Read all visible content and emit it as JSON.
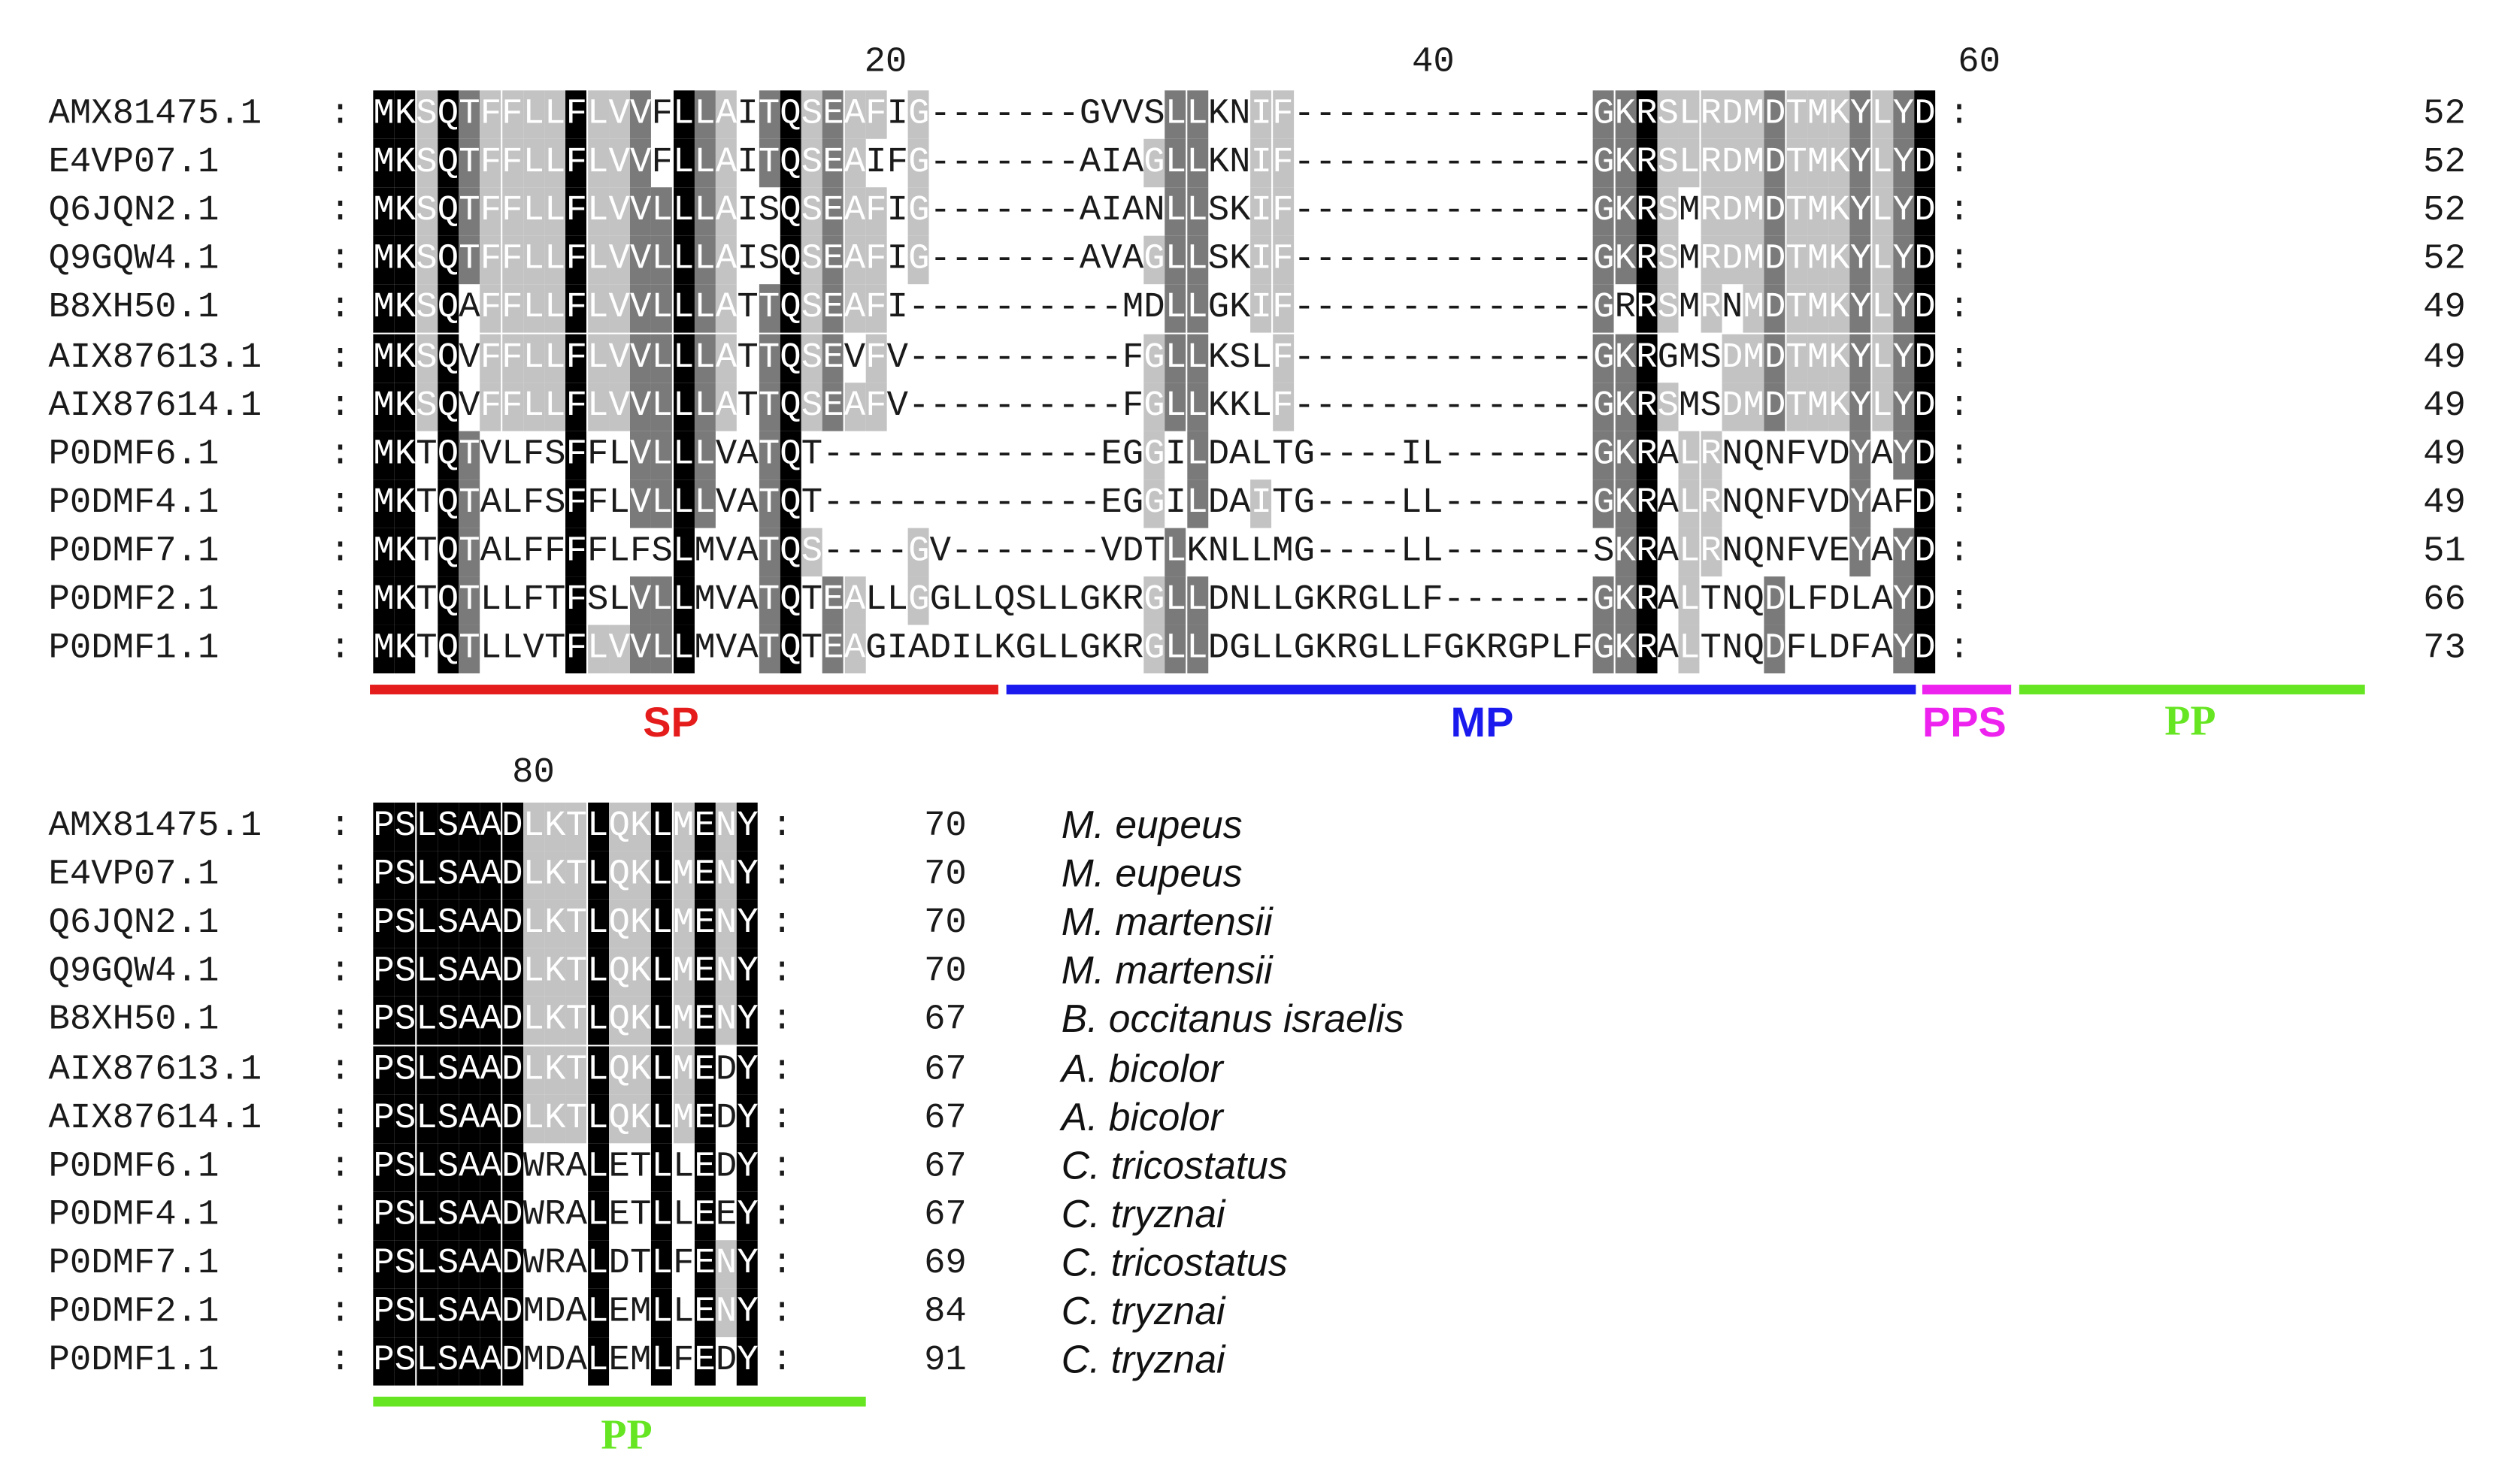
{
  "colors": {
    "black_shade": "#000000",
    "dark_shade": "#7a7a7a",
    "light_shade": "#c3c3c3",
    "text_on_black": "#ffffff",
    "sp": "#e51c1c",
    "mp": "#1a1aee",
    "pps": "#ee22ee",
    "pp": "#66e622"
  },
  "tick_labels": {
    "t20": "20",
    "t40": "40",
    "t60": "60",
    "t80": "80"
  },
  "block1": {
    "rows": [
      {
        "id": "AMX81475.1",
        "seq": "MKSQTFFLLFLVVFLLAITQSEAFIG-------GVVSLLKNIF--------------GKRSLRDMDTMKYLYD",
        "count": "52"
      },
      {
        "id": "E4VP07.1",
        "seq": "MKSQTFFLLFLVVFLLAITQSEAIFG-------AIAGLLKNIF--------------GKRSLRDMDTMKYLYD",
        "count": "52"
      },
      {
        "id": "Q6JQN2.1",
        "seq": "MKSQTFFLLFLVVLLLAISQSEAFIG-------AIANLLSKIF--------------GKRSMRDMDTMKYLYD",
        "count": "52"
      },
      {
        "id": "Q9GQW4.1",
        "seq": "MKSQTFFLLFLVVLLLAISQSEAFIG-------AVAGLLSKIF--------------GKRSMRDMDTMKYLYD",
        "count": "52"
      },
      {
        "id": "B8XH50.1",
        "seq": "MKSQAFFLLFLVVLLLATTQSEAFI----------MDLLGKIF--------------GRRSMRNMDTMKYLYD",
        "count": "49"
      },
      {
        "id": "AIX87613.1",
        "seq": "MKSQVFFLLFLVVLLLATTQSEVFV----------FGLLKSLF--------------GKRGMSDMDTMKYLYD",
        "count": "49"
      },
      {
        "id": "AIX87614.1",
        "seq": "MKSQVFFLLFLVVLLLATTQSEAFV----------FGLLKKLF--------------GKRSMSDMDTMKYLYD",
        "count": "49"
      },
      {
        "id": "P0DMF6.1",
        "seq": "MKTQTVLFSFFLVLLLVATQT-------------EGGILDALTG----IL-------GKRALRNQNFVDYAYD",
        "count": "49"
      },
      {
        "id": "P0DMF4.1",
        "seq": "MKTQTALFSFFLVLLLVATQT-------------EGGILDAITG----LL-------GKRALRNQNFVDYAFD",
        "count": "49"
      },
      {
        "id": "P0DMF7.1",
        "seq": "MKTQTALFFFFLFSLMVATQS----GV-------VDTLKNLLMG----LL-------SKRALRNQNFVEYAYD",
        "count": "51"
      },
      {
        "id": "P0DMF2.1",
        "seq": "MKTQTLLFTFSLVLLMVATQTEALLGGLLQSLLGKRGLLDNLLGKRGLLF-------GKRALTNQDLFDLAYD",
        "count": "66"
      },
      {
        "id": "P0DMF1.1",
        "seq": "MKTQTLLVTFLVVLLMVATQTEAGIADILKGLLGKRGLLDGLLGKRGLLFGKRGPLFGKRALTNQDFLDFAYD",
        "count": "73"
      }
    ]
  },
  "block2": {
    "rows": [
      {
        "id": "AMX81475.1",
        "seq": "PSLSAADLKTLQKLMENY",
        "count": "70",
        "species": "M. eupeus"
      },
      {
        "id": "E4VP07.1",
        "seq": "PSLSAADLKTLQKLMENY",
        "count": "70",
        "species": "M. eupeus"
      },
      {
        "id": "Q6JQN2.1",
        "seq": "PSLSAADLKTLQKLMENY",
        "count": "70",
        "species": "M. martensii"
      },
      {
        "id": "Q9GQW4.1",
        "seq": "PSLSAADLKTLQKLMENY",
        "count": "70",
        "species": "M. martensii"
      },
      {
        "id": "B8XH50.1",
        "seq": "PSLSAADLKTLQKLMENY",
        "count": "67",
        "species": "B. occitanus israelis"
      },
      {
        "id": "AIX87613.1",
        "seq": "PSLSAADLKTLQKLMEDY",
        "count": "67",
        "species": "A. bicolor"
      },
      {
        "id": "AIX87614.1",
        "seq": "PSLSAADLKTLQKLMEDY",
        "count": "67",
        "species": "A. bicolor"
      },
      {
        "id": "P0DMF6.1",
        "seq": "PSLSAADWRALETLLEDY",
        "count": "67",
        "species": "C. tricostatus"
      },
      {
        "id": "P0DMF4.1",
        "seq": "PSLSAADWRALETLLEEY",
        "count": "67",
        "species": "C. tryznai"
      },
      {
        "id": "P0DMF7.1",
        "seq": "PSLSAADWRALDTLFENY",
        "count": "69",
        "species": "C. tricostatus"
      },
      {
        "id": "P0DMF2.1",
        "seq": "PSLSAADMDALEMLLENY",
        "count": "84",
        "species": "C. tryznai"
      },
      {
        "id": "P0DMF1.1",
        "seq": "PSLSAADMDALEMLFEDY",
        "count": "91",
        "species": "C. tryznai"
      }
    ]
  },
  "regions": {
    "sp": "SP",
    "mp": "MP",
    "pps": "PPS",
    "pp1": "PP",
    "pp2": "PP"
  }
}
